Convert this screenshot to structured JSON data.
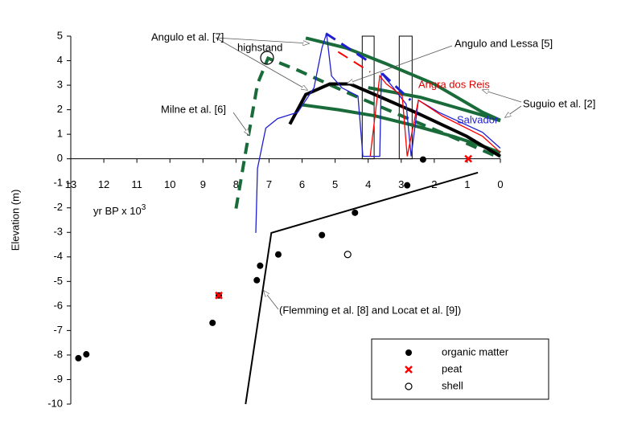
{
  "chart_data": {
    "type": "scatter",
    "y_label": "Elevation (m)",
    "x_label": "yr BP x 10",
    "x_label_exponent": "3",
    "xlim": [
      13,
      0
    ],
    "ylim": [
      -10,
      5
    ],
    "xticks": [
      13,
      12,
      11,
      10,
      9,
      8,
      7,
      6,
      5,
      4,
      3,
      2,
      1,
      0
    ],
    "yticks": [
      5,
      4,
      3,
      2,
      1,
      0,
      -1,
      -2,
      -3,
      -4,
      -5,
      -6,
      -7,
      -8,
      -9,
      -10
    ],
    "series": [
      {
        "name": "organic matter",
        "color": "#000000",
        "marker": "dot",
        "x": [
          12.77,
          12.53,
          8.71,
          8.52,
          7.37,
          7.27,
          6.72,
          5.4,
          4.4,
          2.82,
          2.34
        ],
        "y": [
          -8.13,
          -7.97,
          -6.69,
          -5.57,
          -4.95,
          -4.36,
          -3.9,
          -3.11,
          -2.2,
          -1.08,
          -0.03
        ]
      },
      {
        "name": "peat",
        "color": "#ff0000",
        "marker": "cross",
        "x": [
          8.52,
          0.97
        ],
        "y": [
          -5.57,
          0
        ]
      },
      {
        "name": "shell",
        "color": "#000000",
        "marker": "circle",
        "x": [
          4.62
        ],
        "y": [
          -3.9
        ]
      }
    ],
    "curves": [
      {
        "color": "#000000",
        "style": "solid",
        "width": 2,
        "x": [
          7.71,
          6.93,
          0.68
        ],
        "y": [
          -10,
          -3.02,
          -0.56
        ]
      },
      {
        "color": "#1a6b3a",
        "style": "solid",
        "width": 4,
        "x": [
          5.89,
          4.67,
          3.45,
          2.0,
          0.54,
          0
        ],
        "y": [
          4.92,
          4.52,
          3.87,
          3.05,
          1.9,
          1.57
        ]
      },
      {
        "color": "#1a6b3a",
        "style": "solid",
        "width": 4,
        "x": [
          6.0,
          4.9,
          3.8,
          2.6,
          1.4,
          0.5,
          0
        ],
        "y": [
          2.2,
          2.0,
          1.75,
          1.35,
          0.9,
          0.5,
          0.25
        ]
      },
      {
        "color": "#1a6b3a",
        "style": "solid",
        "width": 4,
        "x": [
          4.0,
          3.2,
          2.4,
          1.5,
          0.6,
          0
        ],
        "y": [
          2.9,
          2.7,
          2.5,
          2.15,
          1.8,
          1.55
        ]
      },
      {
        "color": "#1a6b3a",
        "style": "dashed",
        "width": 4,
        "x": [
          8.0,
          7.71,
          7.35,
          7.03,
          6.13,
          4.67,
          2.97,
          1.51,
          0
        ],
        "y": [
          -2.03,
          0.26,
          3.05,
          4.1,
          3.61,
          2.72,
          1.74,
          0.92,
          0.03
        ]
      },
      {
        "color": "#000000",
        "style": "solid",
        "width": 4,
        "x": [
          6.37,
          5.89,
          5.16,
          4.55,
          3.7,
          2.48,
          1.02,
          0
        ],
        "y": [
          1.41,
          2.62,
          3.05,
          3.05,
          2.56,
          1.84,
          0.92,
          0.1
        ]
      },
      {
        "color": "#1f1fd0",
        "style": "solid",
        "width": 1.3,
        "x": [
          7.4,
          7.35,
          7.1,
          6.74,
          6.13,
          5.64,
          5.4,
          5.26,
          5.11,
          4.79,
          4.31,
          4.16,
          3.65,
          3.6,
          3.33,
          2.85,
          2.7,
          2.48,
          1.87,
          0.54,
          0
        ],
        "y": [
          -3.02,
          -0.39,
          1.25,
          1.64,
          1.9,
          2.89,
          4.52,
          5.11,
          3.38,
          2.89,
          2.56,
          0.1,
          0.1,
          3.48,
          3.05,
          2.23,
          0.1,
          2.39,
          1.9,
          1.08,
          0.43
        ]
      },
      {
        "color": "#1f1fd0",
        "style": "dashed",
        "width": 3,
        "x": [
          5.28,
          3.94,
          null,
          3.58,
          2.72
        ],
        "y": [
          5.11,
          3.93,
          null,
          3.48,
          2.39
        ]
      },
      {
        "color": "#ff0000",
        "style": "solid",
        "width": 1.3,
        "x": [
          3.94,
          3.65,
          3.45,
          2.97,
          2.82,
          2.48,
          1.75,
          0.54,
          0
        ],
        "y": [
          0.1,
          3.38,
          3.05,
          2.56,
          0.1,
          2.39,
          1.74,
          0.92,
          0.26
        ]
      },
      {
        "color": "#ff0000",
        "style": "dashed",
        "width": 2,
        "x": [
          4.91,
          3.94
        ],
        "y": [
          4.36,
          3.54
        ]
      }
    ],
    "boxes": [
      {
        "x0": 4.18,
        "x1": 3.82,
        "y0": 0,
        "y1": 5
      },
      {
        "x0": 3.06,
        "x1": 2.67,
        "y0": 0,
        "y1": 5
      }
    ],
    "annotations": {
      "angulo": "Angulo et al. [7]",
      "highstand": "highstand",
      "angulo_lessa": "Angulo and Lessa [5]",
      "angra": "Angra dos Reis",
      "suguio": "Suguio et al. [2]",
      "salvador": "Salvador",
      "milne": "Milne et al. [6]",
      "flemming": "(Flemming et al. [8] and Locat et al. [9])"
    }
  }
}
